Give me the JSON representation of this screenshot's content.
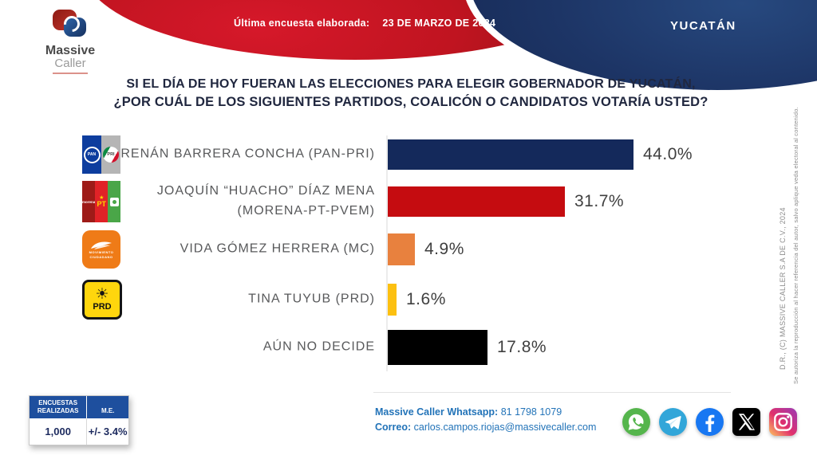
{
  "header": {
    "banner_label": "Última encuesta elaborada:",
    "banner_date": "23 DE MARZO DE 2024",
    "state": "YUCATÁN",
    "brand": {
      "name_top": "Massive",
      "name_bottom": "Caller"
    }
  },
  "title": {
    "line1": "SI EL DÍA DE HOY FUERAN LAS ELECCIONES PARA ELEGIR GOBERNADOR DE YUCATÁN,",
    "line2": "¿POR CUÁL DE LOS SIGUIENTES PARTIDOS, COALICÓN  O CANDIDATOS VOTARÍA USTED?"
  },
  "chart_data": {
    "type": "bar",
    "orientation": "horizontal",
    "unit": "%",
    "xlim": [
      0,
      50
    ],
    "grid": false,
    "legend": false,
    "rows": [
      {
        "label": "RENÁN BARRERA CONCHA  (PAN-PRI)",
        "value": 44.0,
        "value_label": "44.0%",
        "color": "#14295b",
        "logo": "pan-pri"
      },
      {
        "label": "JOAQUÍN “HUACHO” DÍAZ MENA",
        "label_line2": "(MORENA-PT-PVEM)",
        "value": 31.7,
        "value_label": "31.7%",
        "color": "#c50c10",
        "logo": "morena-pt-pvem"
      },
      {
        "label": "VIDA GÓMEZ HERRERA (MC)",
        "value": 4.9,
        "value_label": "4.9%",
        "color": "#e8813e",
        "logo": "mc"
      },
      {
        "label": "TINA TUYUB (PRD)",
        "value": 1.6,
        "value_label": "1.6%",
        "color": "#fcc011",
        "logo": "prd"
      },
      {
        "label": "AÚN NO DECIDE",
        "value": 17.8,
        "value_label": "17.8%",
        "color": "#000000",
        "logo": null
      }
    ]
  },
  "logos": {
    "pan": "PAN",
    "pri": "PRI",
    "morena": "morena",
    "pt": "PT",
    "mc_line1": "MOVIMIENTO",
    "mc_line2": "CIUDADANO",
    "prd": "PRD"
  },
  "stats_table": {
    "header1_line1": "ENCUESTAS",
    "header1_line2": "REALIZADAS",
    "header2": "M.E.",
    "value1": "1,000",
    "value2": "+/- 3.4%"
  },
  "contact": {
    "whatsapp_label": "Massive Caller Whatsapp:",
    "whatsapp_number": "81 1798 1079",
    "email_label": "Correo:",
    "email": "carlos.campos.riojas@massivecaller.com"
  },
  "social": [
    "whatsapp",
    "telegram",
    "facebook",
    "x",
    "instagram"
  ],
  "legal": {
    "line1": "D.R., (C) MASSIVE CALLER S.A DE C.V., 2024",
    "line2": "Se autoriza la reproducción al hacer referencia del autor, salvo aplique veda electoral al contenido."
  },
  "colors": {
    "banner_red": "#b01219",
    "header_navy": "#1d3566",
    "table_header_blue": "#1e4f9e",
    "contact_blue": "#2273b8",
    "label_gray": "#58595b"
  }
}
